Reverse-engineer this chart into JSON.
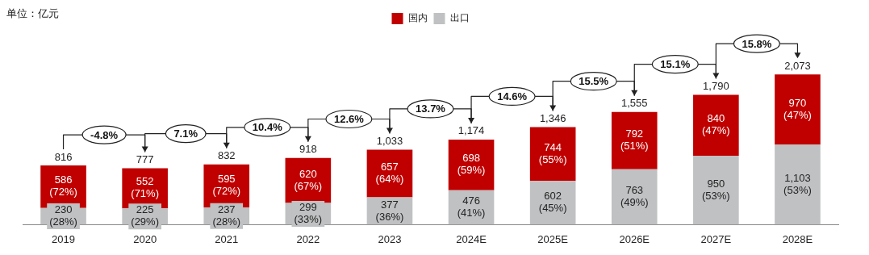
{
  "chart_data": {
    "type": "bar",
    "subtitle": "单位：亿元",
    "stacked": true,
    "legend": "top",
    "grid": false,
    "categories": [
      "2019",
      "2020",
      "2021",
      "2022",
      "2023",
      "2024E",
      "2025E",
      "2026E",
      "2027E",
      "2028E"
    ],
    "series": [
      {
        "name": "出口",
        "color": "#bfc1c2",
        "values": [
          230,
          225,
          237,
          299,
          377,
          476,
          602,
          763,
          950,
          1103
        ],
        "value_labels": [
          "230 (28%)",
          "225 (29%)",
          "237 (28%)",
          "299 (33%)",
          "377 (36%)",
          "476 (41%)",
          "602 (45%)",
          "763 (49%)",
          "950 (53%)",
          "1,103 (53%)"
        ]
      },
      {
        "name": "国内",
        "color": "#c00000",
        "values": [
          586,
          552,
          595,
          620,
          657,
          698,
          744,
          792,
          840,
          970
        ],
        "value_labels": [
          "586 (72%)",
          "552 (71%)",
          "595 (72%)",
          "620 (67%)",
          "657 (64%)",
          "698 (59%)",
          "744 (55%)",
          "792 (51%)",
          "840 (47%)",
          "970 (47%)"
        ]
      }
    ],
    "totals": [
      "816",
      "777",
      "832",
      "918",
      "1,033",
      "1,174",
      "1,346",
      "1,555",
      "1,790",
      "2,073"
    ],
    "annotations": [
      "-4.8%",
      "7.1%",
      "10.4%",
      "12.6%",
      "13.7%",
      "14.6%",
      "15.5%",
      "15.1%",
      "15.8%"
    ]
  }
}
